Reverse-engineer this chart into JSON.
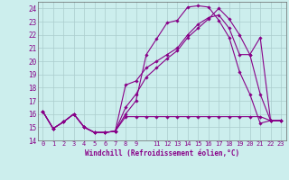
{
  "xlabel": "Windchill (Refroidissement éolien,°C)",
  "bg_color": "#cceeed",
  "grid_color": "#aacccc",
  "line_color": "#880088",
  "ylim": [
    14,
    24.5
  ],
  "xlim": [
    -0.5,
    23.5
  ],
  "yticks": [
    14,
    15,
    16,
    17,
    18,
    19,
    20,
    21,
    22,
    23,
    24
  ],
  "xtick_labels": [
    "0",
    "1",
    "2",
    "3",
    "4",
    "5",
    "6",
    "7",
    "8",
    "9",
    "",
    "11",
    "12",
    "13",
    "14",
    "15",
    "16",
    "17",
    "18",
    "19",
    "20",
    "21",
    "22",
    "23"
  ],
  "series": [
    [
      16.2,
      14.9,
      15.4,
      16.0,
      15.0,
      14.6,
      14.6,
      14.7,
      15.8,
      15.8,
      15.8,
      15.8,
      15.8,
      15.8,
      15.8,
      15.8,
      15.8,
      15.8,
      15.8,
      15.8,
      15.8,
      15.8,
      15.5,
      15.5
    ],
    [
      16.2,
      14.9,
      15.4,
      16.0,
      15.0,
      14.6,
      14.6,
      14.7,
      16.0,
      17.0,
      20.5,
      21.7,
      22.9,
      23.1,
      24.1,
      24.2,
      24.1,
      23.1,
      21.8,
      19.2,
      17.5,
      15.3,
      15.5,
      15.5
    ],
    [
      16.2,
      14.9,
      15.4,
      16.0,
      15.0,
      14.6,
      14.6,
      14.7,
      16.5,
      17.5,
      18.8,
      19.5,
      20.2,
      20.8,
      21.8,
      22.5,
      23.2,
      24.0,
      23.2,
      22.0,
      20.5,
      21.8,
      15.5,
      15.5
    ],
    [
      16.2,
      14.9,
      15.4,
      16.0,
      15.0,
      14.6,
      14.6,
      14.7,
      18.2,
      18.5,
      19.5,
      20.0,
      20.5,
      21.0,
      22.0,
      22.8,
      23.3,
      23.5,
      22.5,
      20.5,
      20.5,
      17.5,
      15.5,
      15.5
    ]
  ]
}
